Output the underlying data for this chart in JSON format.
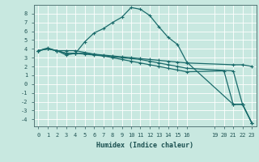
{
  "title": "",
  "xlabel": "Humidex (Indice chaleur)",
  "ylabel": "",
  "background_color": "#c8e8e0",
  "grid_color": "#ffffff",
  "line_color": "#1a6b6b",
  "xlim": [
    -0.5,
    23.5
  ],
  "ylim": [
    -4.8,
    9.0
  ],
  "xticks": [
    0,
    1,
    2,
    3,
    4,
    5,
    6,
    7,
    8,
    9,
    10,
    11,
    12,
    13,
    14,
    15,
    16,
    19,
    20,
    21,
    22,
    23
  ],
  "yticks": [
    -4,
    -3,
    -2,
    -1,
    0,
    1,
    2,
    3,
    4,
    5,
    6,
    7,
    8
  ],
  "series": [
    {
      "x": [
        0,
        1,
        2,
        3,
        4,
        5,
        6,
        7,
        8,
        9,
        10,
        11,
        12,
        13,
        14,
        15,
        16,
        21,
        22,
        23
      ],
      "y": [
        3.8,
        4.1,
        3.8,
        3.3,
        3.5,
        4.8,
        5.8,
        6.3,
        7.0,
        7.6,
        8.7,
        8.5,
        7.8,
        6.5,
        5.3,
        4.5,
        2.5,
        -2.3,
        -2.3,
        -4.4
      ]
    },
    {
      "x": [
        0,
        1,
        2,
        3,
        4,
        5,
        6,
        7,
        8,
        9,
        10,
        11,
        12,
        13,
        14,
        15,
        16,
        21,
        22,
        23
      ],
      "y": [
        3.8,
        4.0,
        3.8,
        3.5,
        3.5,
        3.5,
        3.4,
        3.3,
        3.2,
        3.1,
        3.0,
        2.9,
        2.8,
        2.7,
        2.6,
        2.5,
        2.4,
        2.2,
        2.2,
        2.0
      ]
    },
    {
      "x": [
        0,
        1,
        2,
        3,
        4,
        5,
        6,
        7,
        8,
        9,
        10,
        11,
        12,
        13,
        14,
        15,
        16,
        21,
        22,
        23
      ],
      "y": [
        3.8,
        4.0,
        3.8,
        3.5,
        3.5,
        3.4,
        3.3,
        3.2,
        3.1,
        3.0,
        2.9,
        2.8,
        2.6,
        2.4,
        2.2,
        2.0,
        1.8,
        1.5,
        -2.3,
        -4.4
      ]
    },
    {
      "x": [
        0,
        1,
        2,
        3,
        4,
        5,
        6,
        7,
        8,
        9,
        10,
        11,
        12,
        13,
        14,
        15,
        16,
        20,
        21,
        22,
        23
      ],
      "y": [
        3.8,
        4.0,
        3.8,
        3.8,
        3.8,
        3.6,
        3.4,
        3.2,
        3.0,
        2.8,
        2.6,
        2.4,
        2.2,
        2.0,
        1.8,
        1.6,
        1.4,
        1.5,
        -2.3,
        -2.3,
        -4.4
      ]
    }
  ]
}
